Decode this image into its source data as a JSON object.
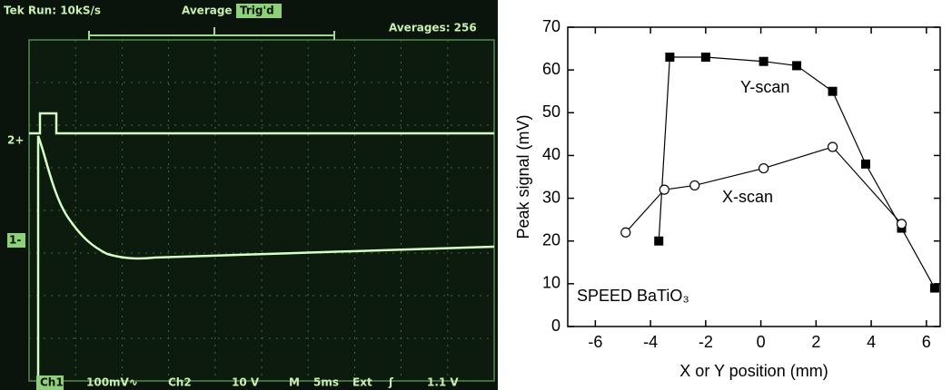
{
  "oscilloscope": {
    "top_bar": [
      "Tek Run: 10kS/s",
      "Average",
      "Trig'd",
      "Averages: 256"
    ],
    "bottom_bar": [
      "Ch1",
      "100mV∿",
      "Ch2",
      "10 V",
      "M",
      "5ms",
      "Ext",
      "ʃ",
      "1.1 V"
    ],
    "channel_markers": [
      "2+",
      "1-"
    ]
  },
  "chart_data": {
    "type": "line",
    "xlabel": "X or Y position (mm)",
    "ylabel": "Peak signal (mV)",
    "annotations": [
      "Y-scan",
      "X-scan",
      "SPEED BaTiO₃"
    ],
    "xlim": [
      -7,
      6.5
    ],
    "xticks": [
      -6,
      -4,
      -2,
      0,
      2,
      4,
      6
    ],
    "ylim": [
      0,
      70
    ],
    "yticks": [
      0,
      10,
      20,
      30,
      40,
      50,
      60,
      70
    ],
    "series": [
      {
        "name": "Y-scan",
        "color": "#000000",
        "marker": "square",
        "x": [
          -3.7,
          -3.3,
          -2.0,
          0.1,
          1.3,
          2.6,
          3.8,
          5.1,
          6.3
        ],
        "values": [
          20,
          63,
          63,
          62,
          61,
          55,
          38,
          23,
          9
        ]
      },
      {
        "name": "X-scan",
        "color": "#000000",
        "marker": "circle",
        "x": [
          -4.9,
          -3.5,
          -2.4,
          0.1,
          2.6,
          5.1
        ],
        "values": [
          22,
          32,
          33,
          37,
          42,
          24
        ]
      }
    ]
  }
}
